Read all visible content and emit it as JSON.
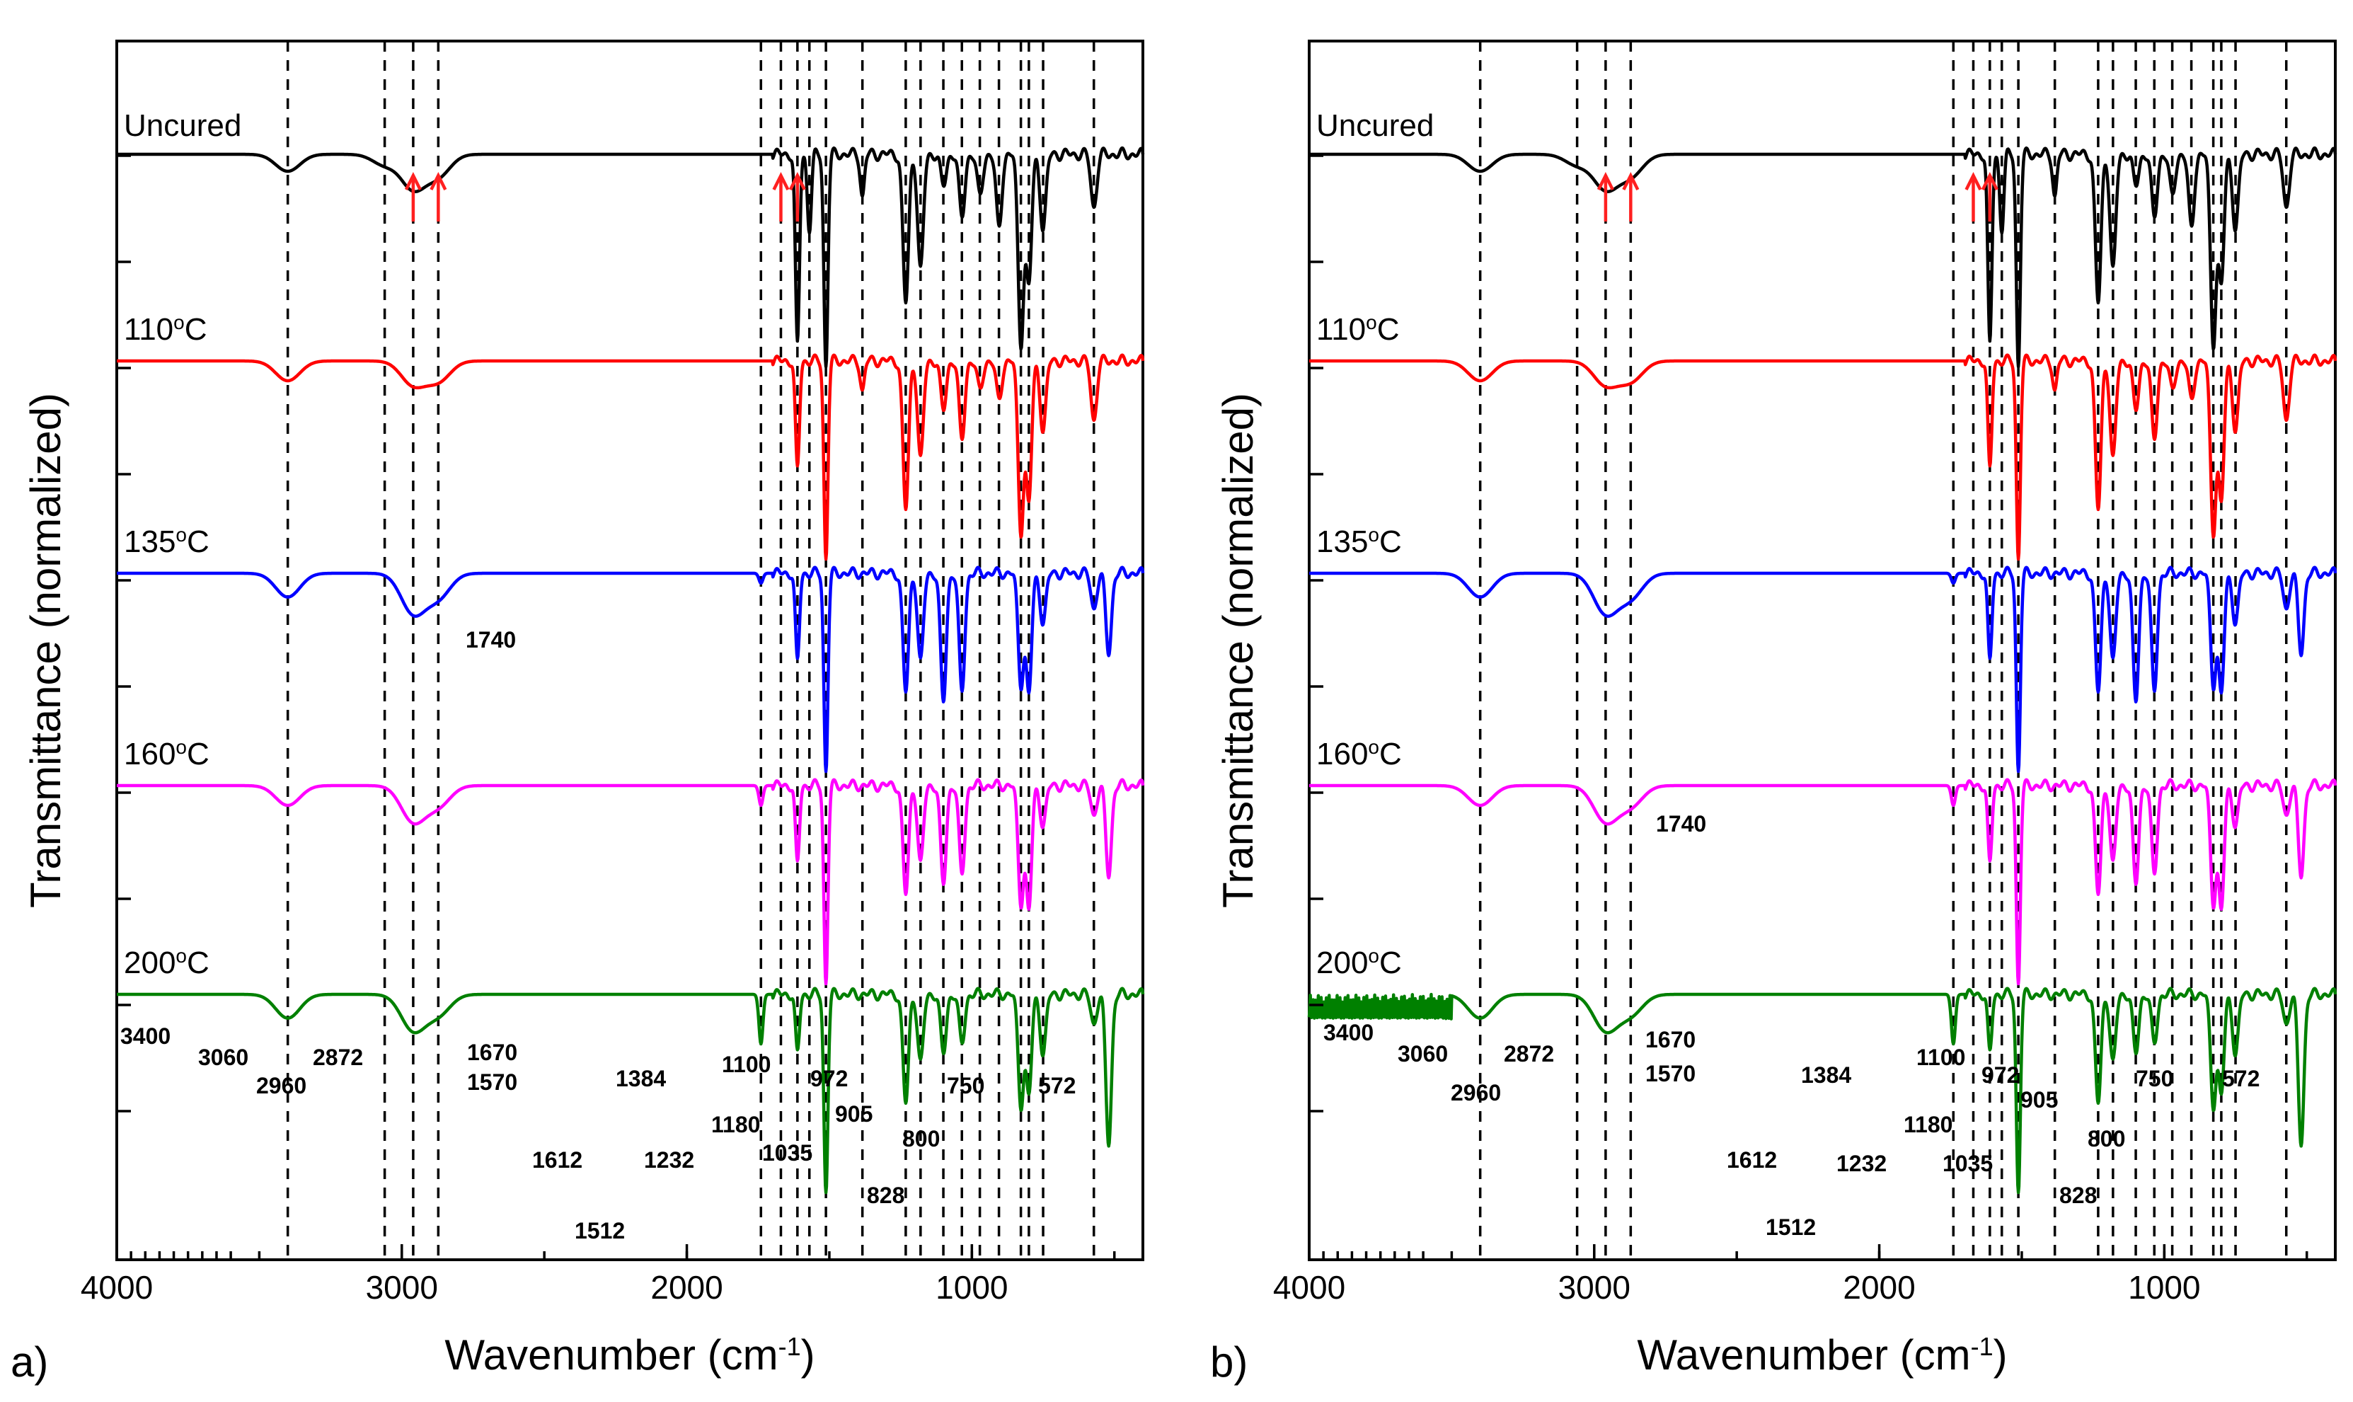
{
  "figure": {
    "colors": {
      "Uncured": "#000000",
      "110 °C": "#ff0000",
      "135 °C": "#0000ff",
      "160 °C": "#ff00ff",
      "200 °C": "#008000",
      "arrow": "#ff2020"
    }
  },
  "chart_data": [
    {
      "type": "line",
      "panel": "a)",
      "xlabel": "Wavenumber (cm",
      "xlabel_sup": "-1",
      "xlabel_close": ")",
      "ylabel": "Transmittance (normalized)",
      "xlim": [
        4000,
        400
      ],
      "x_reversed": true,
      "xticks": [
        4000,
        3000,
        2000,
        1000
      ],
      "xtick_labels": [
        "4000",
        "3000",
        "2000",
        "1000"
      ],
      "grid": false,
      "series": [
        {
          "name": "200 °C",
          "label": "200",
          "label_sup": "o",
          "label_unit": "C",
          "offset": 4
        },
        {
          "name": "160 °C",
          "label": "160",
          "label_sup": "o",
          "label_unit": "C",
          "offset": 3
        },
        {
          "name": "135 °C",
          "label": "135",
          "label_sup": "o",
          "label_unit": "C",
          "offset": 2
        },
        {
          "name": "110 °C",
          "label": "110",
          "label_sup": "o",
          "label_unit": "C",
          "offset": 1
        },
        {
          "name": "Uncured",
          "label": "Uncured",
          "label_sup": "",
          "label_unit": "",
          "offset": 0
        }
      ],
      "reference_lines": [
        3400,
        3060,
        2960,
        2872,
        1740,
        1670,
        1612,
        1570,
        1512,
        1384,
        1232,
        1180,
        1100,
        1035,
        972,
        905,
        828,
        800,
        750,
        572
      ],
      "peak_labels": [
        "3400",
        "3060",
        "2960",
        "2872",
        "1670",
        "1570",
        "1612",
        "1512",
        "1384",
        "1232",
        "1180",
        "1100",
        "1035",
        "972",
        "905",
        "828",
        "800",
        "750",
        "572",
        "1740"
      ],
      "arrowed_peaks": [
        2960,
        2872,
        1670,
        1612
      ]
    },
    {
      "type": "line",
      "panel": "b)",
      "xlabel": "Wavenumber (cm",
      "xlabel_sup": "-1",
      "xlabel_close": ")",
      "ylabel": "Transmittance (normalized)",
      "xlim": [
        4000,
        400
      ],
      "x_reversed": true,
      "xticks": [
        4000,
        3000,
        2000,
        1000
      ],
      "xtick_labels": [
        "4000",
        "3000",
        "2000",
        "1000"
      ],
      "grid": false,
      "series": [
        {
          "name": "200 °C",
          "label": "200",
          "label_sup": "o",
          "label_unit": "C",
          "offset": 4
        },
        {
          "name": "160 °C",
          "label": "160",
          "label_sup": "o",
          "label_unit": "C",
          "offset": 3
        },
        {
          "name": "135 °C",
          "label": "135",
          "label_sup": "o",
          "label_unit": "C",
          "offset": 2
        },
        {
          "name": "110 °C",
          "label": "110",
          "label_sup": "o",
          "label_unit": "C",
          "offset": 1
        },
        {
          "name": "Uncured",
          "label": "Uncured",
          "label_sup": "",
          "label_unit": "",
          "offset": 0
        }
      ],
      "reference_lines": [
        3400,
        3060,
        2960,
        2872,
        1740,
        1670,
        1612,
        1570,
        1512,
        1384,
        1232,
        1180,
        1100,
        1035,
        972,
        905,
        828,
        800,
        750,
        572
      ],
      "peak_labels": [
        "3400",
        "3060",
        "2960",
        "2872",
        "1670",
        "1570",
        "1612",
        "1512",
        "1384",
        "1232",
        "1180",
        "1100",
        "1035",
        "972",
        "905",
        "828",
        "800",
        "750",
        "572",
        "1740"
      ],
      "arrowed_peaks": [
        2960,
        2872,
        1670,
        1612
      ]
    }
  ]
}
